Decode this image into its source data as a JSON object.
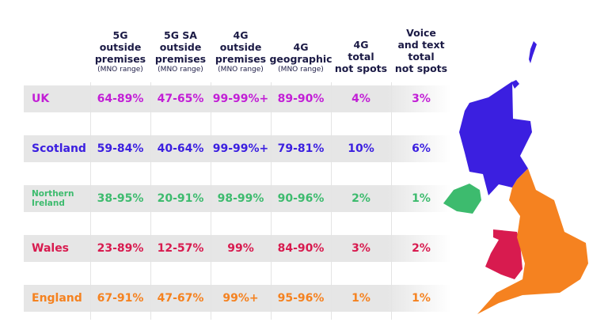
{
  "chart_data": {
    "type": "table",
    "columns": [
      {
        "lines": [
          "5G",
          "outside",
          "premises"
        ],
        "sub": "(MNO range)"
      },
      {
        "lines": [
          "5G SA",
          "outside",
          "premises"
        ],
        "sub": "(MNO range)"
      },
      {
        "lines": [
          "4G",
          "outside",
          "premises"
        ],
        "sub": "(MNO range)"
      },
      {
        "lines": [
          "4G",
          "geographic"
        ],
        "sub": "(MNO range)"
      },
      {
        "lines": [
          "4G",
          "total",
          "not spots"
        ],
        "sub": ""
      },
      {
        "lines": [
          "Voice",
          "and text",
          "total",
          "not spots"
        ],
        "sub": ""
      }
    ],
    "rows": [
      {
        "label": "UK",
        "color": "#c21fd6",
        "values": [
          "64-89%",
          "47-65%",
          "99-99%+",
          "89-90%",
          "4%",
          "3%"
        ]
      },
      {
        "label": "Scotland",
        "color": "#3b1fe0",
        "values": [
          "59-84%",
          "40-64%",
          "99-99%+",
          "79-81%",
          "10%",
          "6%"
        ]
      },
      {
        "label": "Northern Ireland",
        "color": "#3dbb6e",
        "values": [
          "38-95%",
          "20-91%",
          "98-99%",
          "90-96%",
          "2%",
          "1%"
        ]
      },
      {
        "label": "Wales",
        "color": "#d81b4f",
        "values": [
          "23-89%",
          "12-57%",
          "99%",
          "84-90%",
          "3%",
          "2%"
        ]
      },
      {
        "label": "England",
        "color": "#f58220",
        "values": [
          "67-91%",
          "47-67%",
          "99%+",
          "95-96%",
          "1%",
          "1%"
        ]
      }
    ]
  },
  "map": {
    "regions": [
      {
        "name": "Scotland",
        "color": "#3b1fe0"
      },
      {
        "name": "Northern Ireland",
        "color": "#3dbb6e"
      },
      {
        "name": "Wales",
        "color": "#d81b4f"
      },
      {
        "name": "England",
        "color": "#f58220"
      }
    ]
  }
}
